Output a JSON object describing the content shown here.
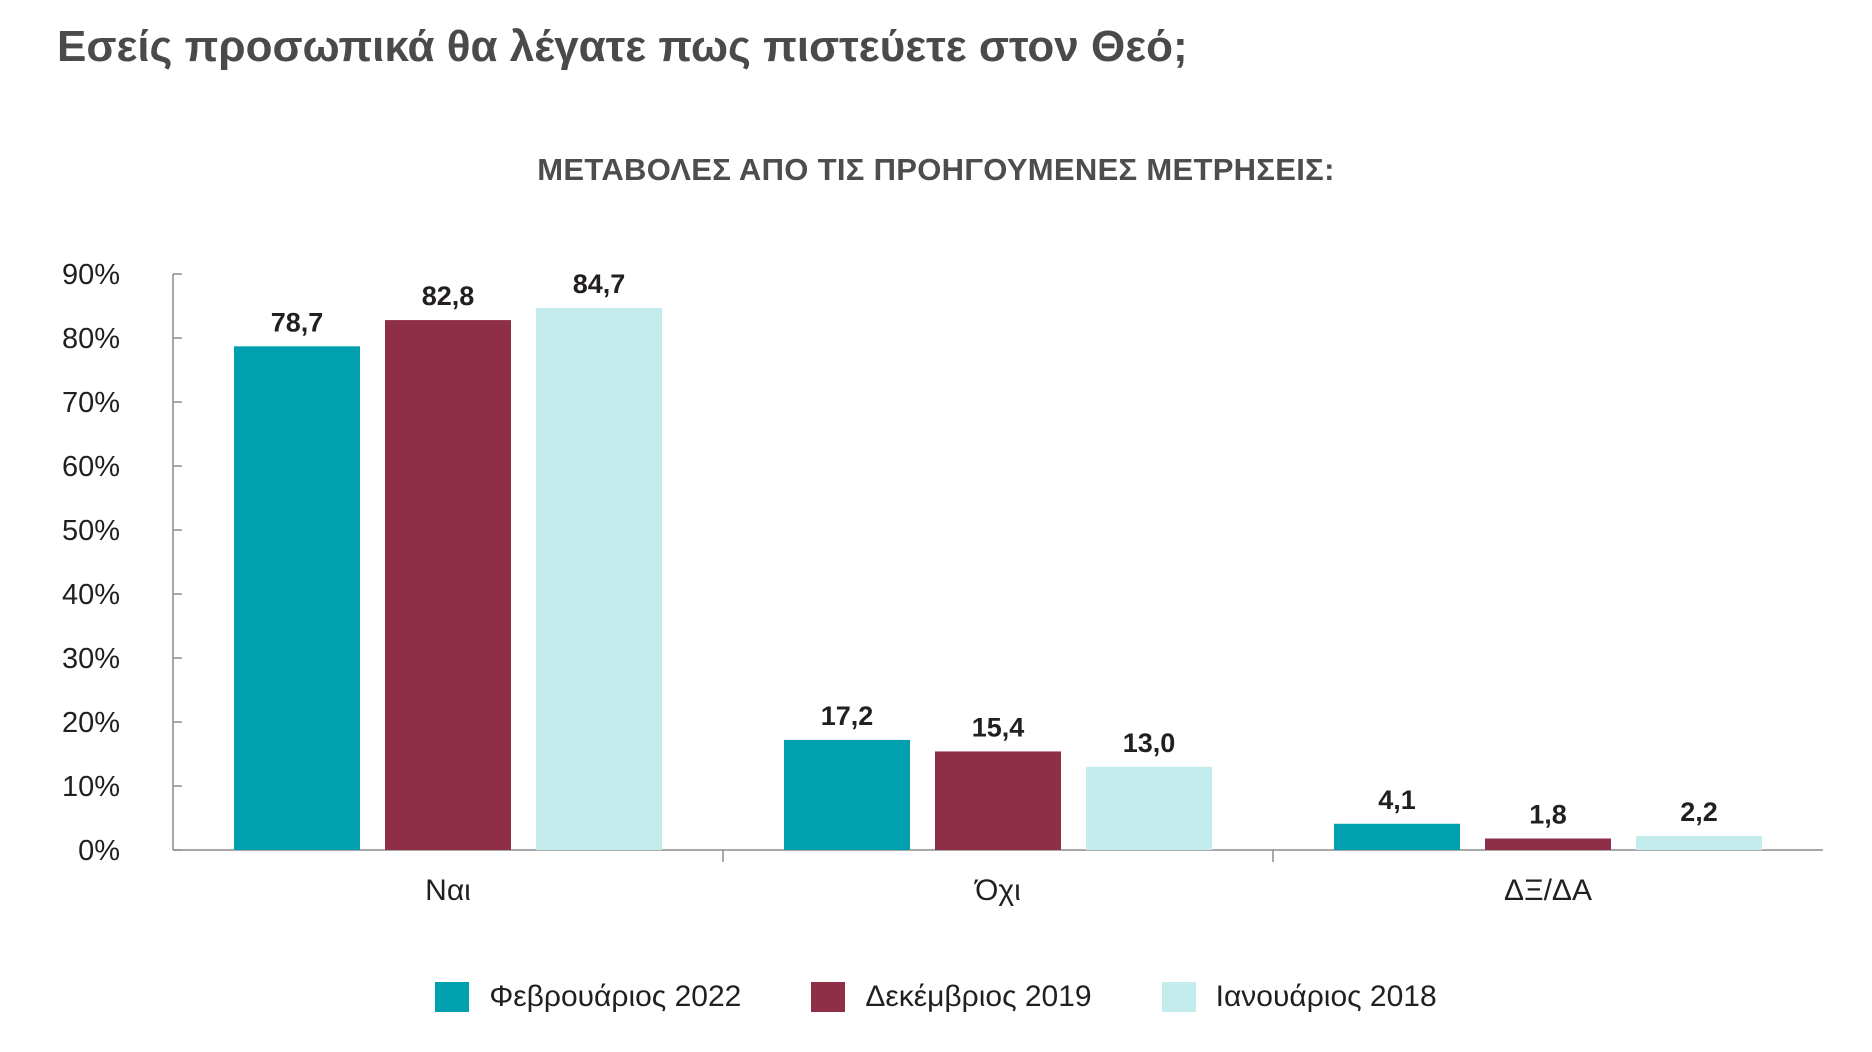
{
  "title": "Εσείς προσωπικά θα λέγατε πως πιστεύετε στον Θεό;",
  "subtitle": "ΜΕΤΑΒΟΛΕΣ ΑΠΟ ΤΙΣ ΠΡΟΗΓΟΥΜΕΝΕΣ ΜΕΤΡΗΣΕΙΣ:",
  "legend": [
    {
      "label": "Φεβρουάριος 2022",
      "color": "#00a0ae"
    },
    {
      "label": "Δεκέμβριος 2019",
      "color": "#8e2f47"
    },
    {
      "label": "Ιανουάριος 2018",
      "color": "#c4ecec"
    }
  ],
  "chart_data": {
    "type": "bar",
    "categories": [
      "Ναι",
      "Όχι",
      "ΔΞ/ΔΑ"
    ],
    "series": [
      {
        "name": "Φεβρουάριος 2022",
        "color": "#00a0ae",
        "values": [
          78.7,
          17.2,
          4.1
        ],
        "labels": [
          "78,7",
          "17,2",
          "4,1"
        ]
      },
      {
        "name": "Δεκέμβριος 2019",
        "color": "#8e2f47",
        "values": [
          82.8,
          15.4,
          1.8
        ],
        "labels": [
          "82,8",
          "15,4",
          "1,8"
        ]
      },
      {
        "name": "Ιανουάριος 2018",
        "color": "#c4ecec",
        "values": [
          84.7,
          13.0,
          2.2
        ],
        "labels": [
          "84,7",
          "13,0",
          "2,2"
        ]
      }
    ],
    "yticks": [
      "0%",
      "10%",
      "20%",
      "30%",
      "40%",
      "50%",
      "60%",
      "70%",
      "80%",
      "90%"
    ],
    "ylim": [
      0,
      90
    ],
    "grid": false,
    "legend_position": "bottom"
  }
}
